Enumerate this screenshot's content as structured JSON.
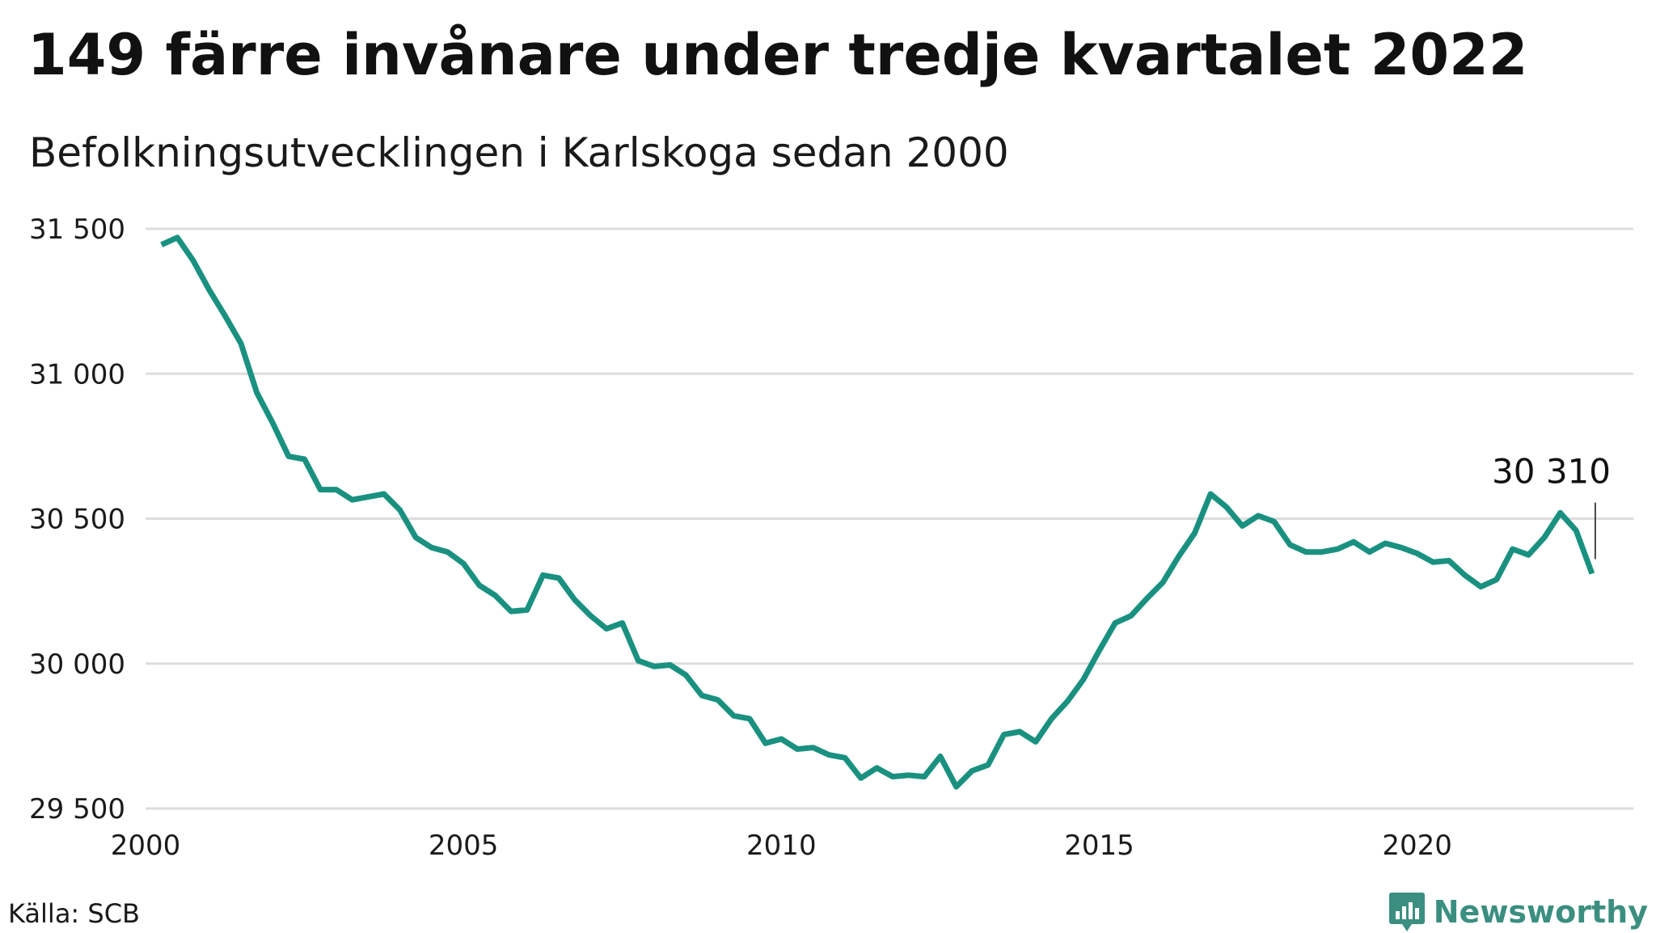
{
  "title": "149 färre invånare under tredje kvartalet 2022",
  "subtitle": "Befolkningsutvecklingen i Karlskoga sedan 2000",
  "source": "Källa: SCB",
  "brand": "Newsworthy",
  "colors": {
    "line": "#1a9180",
    "grid": "#dddddd",
    "brand": "#3b8f80"
  },
  "chart_data": {
    "type": "line",
    "title": "149 färre invånare under tredje kvartalet 2022",
    "subtitle": "Befolkningsutvecklingen i Karlskoga sedan 2000",
    "xlabel": "",
    "ylabel": "",
    "xlim": [
      2000,
      2023.4
    ],
    "ylim": [
      29500,
      31500
    ],
    "x_ticks": [
      2000,
      2005,
      2010,
      2015,
      2020
    ],
    "x_tick_labels": [
      "2000",
      "2005",
      "2010",
      "2015",
      "2020"
    ],
    "y_ticks": [
      29500,
      30000,
      30500,
      31000,
      31500
    ],
    "y_tick_labels": [
      "29 500",
      "30 000",
      "30 500",
      "31 000",
      "31 500"
    ],
    "grid": true,
    "legend": "none",
    "annotation": {
      "x": 2022.75,
      "y": 30310,
      "label": "30 310"
    },
    "series": [
      {
        "x": [
          2000.25,
          2000.5,
          2000.75,
          2001.0,
          2001.25,
          2001.5,
          2001.75,
          2002.0,
          2002.25,
          2002.5,
          2002.75,
          2003.0,
          2003.25,
          2003.5,
          2003.75,
          2004.0,
          2004.25,
          2004.5,
          2004.75,
          2005.0,
          2005.25,
          2005.5,
          2005.75,
          2006.0,
          2006.25,
          2006.5,
          2006.75,
          2007.0,
          2007.25,
          2007.5,
          2007.75,
          2008.0,
          2008.25,
          2008.5,
          2008.75,
          2009.0,
          2009.25,
          2009.5,
          2009.75,
          2010.0,
          2010.25,
          2010.5,
          2010.75,
          2011.0,
          2011.25,
          2011.5,
          2011.75,
          2012.0,
          2012.25,
          2012.5,
          2012.75,
          2013.0,
          2013.25,
          2013.5,
          2013.75,
          2014.0,
          2014.25,
          2014.5,
          2014.75,
          2015.0,
          2015.25,
          2015.5,
          2015.75,
          2016.0,
          2016.25,
          2016.5,
          2016.75,
          2017.0,
          2017.25,
          2017.5,
          2017.75,
          2018.0,
          2018.25,
          2018.5,
          2018.75,
          2019.0,
          2019.25,
          2019.5,
          2019.75,
          2020.0,
          2020.25,
          2020.5,
          2020.75,
          2021.0,
          2021.25,
          2021.5,
          2021.75,
          2022.0,
          2022.25,
          2022.5,
          2022.75
        ],
        "values": [
          31445,
          31470,
          31390,
          31290,
          31200,
          31105,
          30935,
          30830,
          30715,
          30705,
          30600,
          30600,
          30565,
          30575,
          30585,
          30530,
          30435,
          30400,
          30385,
          30345,
          30270,
          30235,
          30180,
          30185,
          30305,
          30295,
          30220,
          30165,
          30120,
          30140,
          30010,
          29990,
          29995,
          29960,
          29890,
          29875,
          29820,
          29810,
          29725,
          29740,
          29705,
          29710,
          29685,
          29675,
          29605,
          29640,
          29610,
          29615,
          29610,
          29680,
          29575,
          29630,
          29650,
          29755,
          29765,
          29730,
          29810,
          29870,
          29945,
          30045,
          30140,
          30165,
          30225,
          30280,
          30370,
          30450,
          30585,
          30540,
          30475,
          30510,
          30490,
          30410,
          30385,
          30385,
          30395,
          30420,
          30385,
          30415,
          30400,
          30380,
          30350,
          30355,
          30305,
          30265,
          30290,
          30395,
          30375,
          30435,
          30520,
          30459,
          30310
        ]
      }
    ]
  }
}
